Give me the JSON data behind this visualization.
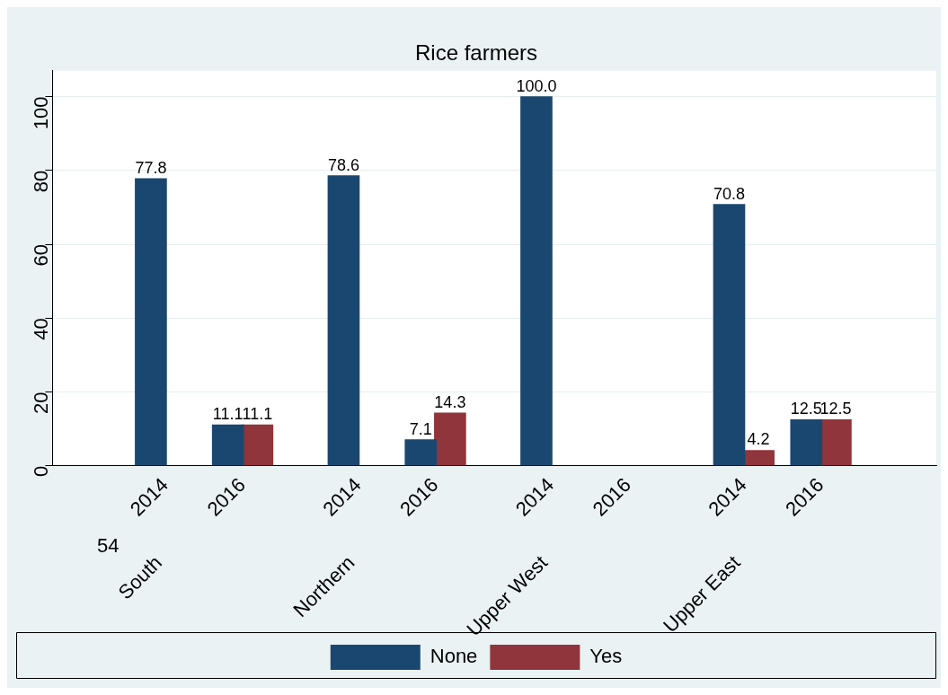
{
  "chart_data": {
    "type": "bar",
    "title": "Rice farmers",
    "categories": [
      "2014",
      "2016",
      "2014",
      "2016",
      "2014",
      "2016",
      "2014",
      "2016"
    ],
    "series": [
      {
        "name": "None",
        "color": "#1a476f",
        "values": [
          77.8,
          11.1,
          78.6,
          7.1,
          100.0,
          null,
          70.8,
          12.5
        ],
        "value_labels": [
          "77.8",
          "11.1",
          "78.6",
          "7.1",
          "100.0",
          null,
          "70.8",
          "12.5"
        ]
      },
      {
        "name": "Yes",
        "color": "#90353b",
        "values": [
          null,
          11.1,
          null,
          14.3,
          null,
          null,
          4.2,
          12.5
        ],
        "value_labels": [
          null,
          "11.1",
          null,
          "14.3",
          null,
          null,
          "4.2",
          "12.5"
        ]
      }
    ],
    "annotations": [
      "54",
      "South",
      "Northern",
      "Upper West",
      "Upper East"
    ],
    "ylim": [
      0,
      107
    ],
    "yticks": [
      0,
      20,
      40,
      60,
      80,
      100
    ],
    "grid": "y",
    "legend": "bottom"
  }
}
